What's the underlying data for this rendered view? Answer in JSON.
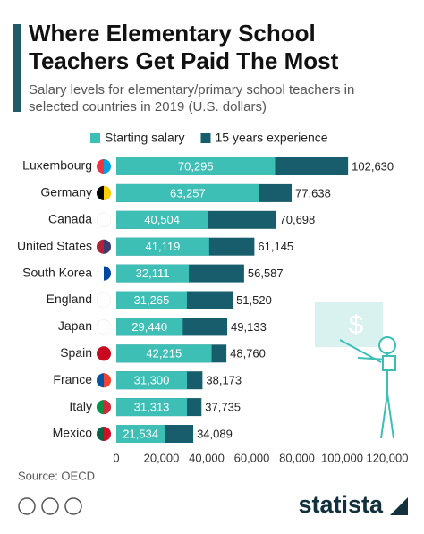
{
  "chart_data": {
    "type": "bar",
    "orientation": "horizontal",
    "overlap": true,
    "title": "Where Elementary School Teachers Get Paid The Most",
    "subtitle": "Salary levels for elementary/primary school teachers in selected countries in 2019 (U.S. dollars)",
    "categories": [
      "Luxembourg",
      "Germany",
      "Canada",
      "United States",
      "South Korea",
      "England",
      "Japan",
      "Spain",
      "France",
      "Italy",
      "Mexico"
    ],
    "series": [
      {
        "name": "15 years experience",
        "color": "#175d6b",
        "values": [
          102630,
          77638,
          70698,
          61145,
          56587,
          51520,
          49133,
          48760,
          38173,
          37735,
          34089
        ],
        "value_labels": [
          "102,630",
          "77,638",
          "70,698",
          "61,145",
          "56,587",
          "51,520",
          "49,133",
          "48,760",
          "38,173",
          "37,735",
          "34,089"
        ]
      },
      {
        "name": "Starting salary",
        "color": "#3dbfb6",
        "values": [
          70295,
          63257,
          40504,
          41119,
          32111,
          31265,
          29440,
          42215,
          31300,
          31313,
          21534
        ],
        "value_labels": [
          "70,295",
          "63,257",
          "40,504",
          "41,119",
          "32,111",
          "31,265",
          "29,440",
          "42,215",
          "31,300",
          "31,313",
          "21,534"
        ]
      }
    ],
    "legend_order": [
      1,
      0
    ],
    "xlim": [
      0,
      120000
    ],
    "xticks": [
      0,
      {
        "value": 20000,
        "label": "20,000"
      },
      {
        "value": 40000,
        "label": "40,000"
      },
      {
        "value": 60000,
        "label": "60,000"
      },
      {
        "value": 80000,
        "label": "80,000"
      },
      {
        "value": 100000,
        "label": "100,000"
      },
      {
        "value": 120000,
        "label": "120,000"
      }
    ],
    "grid": false
  },
  "footer": {
    "source": "Source: OECD",
    "brand": "statista"
  }
}
